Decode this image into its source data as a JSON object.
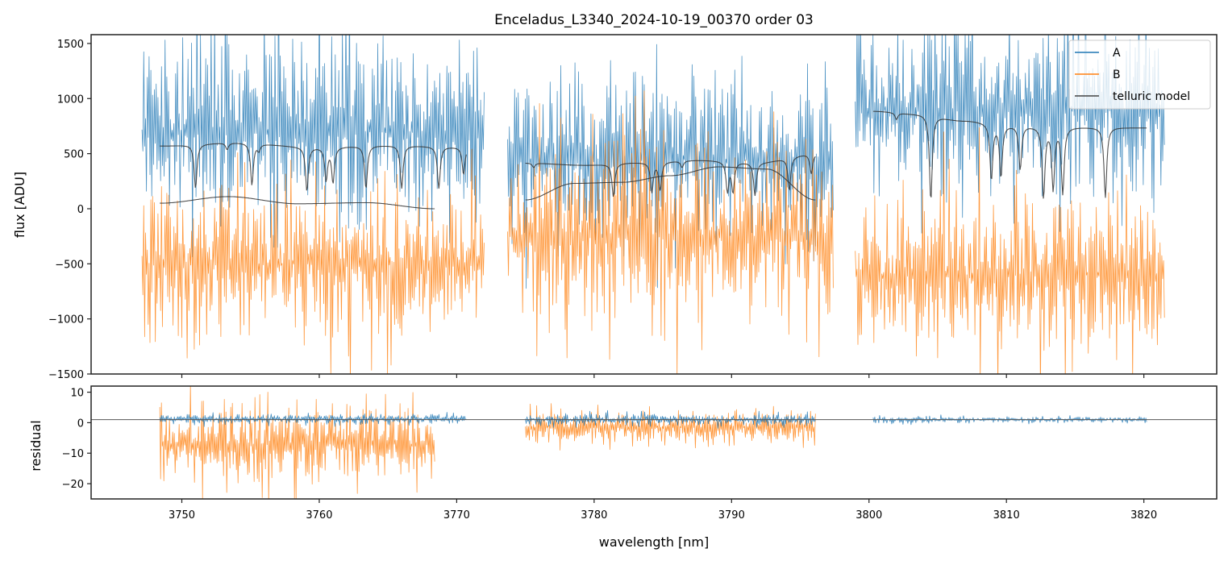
{
  "chart_data": [
    {
      "panel": "flux",
      "type": "line",
      "title": "Enceladus_L3340_2024-10-19_00370  order 03",
      "xlabel": "",
      "ylabel": "flux [ADU]",
      "xlim": [
        3743.4,
        3825.3
      ],
      "ylim": [
        -1500,
        1580
      ],
      "yticks": [
        -1500,
        -1000,
        -500,
        0,
        500,
        1000,
        1500
      ],
      "ytick_labels": [
        "−1500",
        "−1000",
        "−500",
        "0",
        "500",
        "1000",
        "1500"
      ],
      "xticks": [
        3750,
        3760,
        3770,
        3780,
        3790,
        3800,
        3810,
        3820
      ],
      "grid": false,
      "legend": {
        "placement": "top-right",
        "entries": [
          {
            "label": "A",
            "color": "#1f77b4"
          },
          {
            "label": "B",
            "color": "#ff7f0e"
          },
          {
            "label": "telluric model",
            "color": "#444444"
          }
        ]
      },
      "series": [
        {
          "name": "A",
          "color": "#1f77b4",
          "segments": [
            {
              "x_range": [
                3747.1,
                3772.0
              ],
              "mean": 700,
              "spread": 650
            },
            {
              "x_range": [
                3773.7,
                3797.4
              ],
              "mean": 450,
              "spread": 600
            },
            {
              "x_range": [
                3799.0,
                3821.5
              ],
              "mean": 900,
              "spread": 650
            }
          ]
        },
        {
          "name": "B",
          "color": "#ff7f0e",
          "segments": [
            {
              "x_range": [
                3747.1,
                3772.0
              ],
              "mean": -500,
              "spread": 550
            },
            {
              "x_range": [
                3773.7,
                3797.4
              ],
              "mean": -250,
              "spread": 650
            },
            {
              "x_range": [
                3799.0,
                3821.5
              ],
              "mean": -600,
              "spread": 600
            }
          ]
        },
        {
          "name": "telluric model",
          "color": "#333333",
          "segments": [
            {
              "x_range": [
                3748.4,
                3770.7
              ],
              "continuum": [
                570,
                600,
                560,
                575,
                560
              ],
              "lines": [
                3751.0,
                3753.3,
                3755.1,
                3755.6,
                3759.1,
                3760.5,
                3761.0,
                3763.4,
                3766.0,
                3768.7,
                3770.5
              ],
              "depths": [
                400,
                60,
                380,
                60,
                400,
                300,
                320,
                390,
                390,
                380,
                250
              ]
            },
            {
              "x_range": [
                3748.4,
                3768.4
              ],
              "continuum": [
                50,
                110,
                45,
                55,
                0
              ],
              "lines": [],
              "depths": []
            },
            {
              "x_range": [
                3775.0,
                3796.1
              ],
              "continuum": [
                415,
                395,
                420,
                440,
                420,
                500
              ],
              "lines": [
                3775.6,
                3781.4,
                3784.2,
                3784.8,
                3786.4,
                3789.7,
                3790.1,
                3791.7,
                3794.2,
                3795.8
              ],
              "depths": [
                40,
                300,
                270,
                250,
                60,
                270,
                270,
                300,
                300,
                180
              ]
            },
            {
              "x_range": [
                3775.0,
                3796.1
              ],
              "continuum": [
                80,
                230,
                240,
                300,
                380,
                360,
                80
              ],
              "lines": [],
              "depths": []
            },
            {
              "x_range": [
                3800.3,
                3820.2
              ],
              "continuum": [
                885,
                860,
                800,
                760,
                745,
                740,
                735
              ],
              "lines": [
                3802.0,
                3804.5,
                3808.9,
                3809.6,
                3811.0,
                3812.7,
                3813.4,
                3814.1,
                3817.2
              ],
              "depths": [
                60,
                780,
                510,
                470,
                400,
                640,
                560,
                600,
                640
              ]
            }
          ]
        }
      ]
    },
    {
      "panel": "residual",
      "type": "line",
      "xlabel": "wavelength [nm]",
      "ylabel": "residual",
      "xlim": [
        3743.4,
        3825.3
      ],
      "ylim": [
        -25,
        12
      ],
      "yticks": [
        -20,
        -10,
        0,
        10
      ],
      "ytick_labels": [
        "−20",
        "−10",
        "0",
        "10"
      ],
      "xticks": [
        3750,
        3760,
        3770,
        3780,
        3790,
        3800,
        3810,
        3820
      ],
      "xtick_labels": [
        "3750",
        "3760",
        "3770",
        "3780",
        "3790",
        "3800",
        "3810",
        "3820"
      ],
      "reference_line": 1,
      "series": [
        {
          "name": "A",
          "color": "#1f77b4",
          "segments": [
            {
              "x_range": [
                3748.4,
                3770.7
              ],
              "mean": 1.2,
              "spread": 1.2
            },
            {
              "x_range": [
                3775.0,
                3796.1
              ],
              "mean": 1.0,
              "spread": 1.5
            },
            {
              "x_range": [
                3800.3,
                3820.2
              ],
              "mean": 1.0,
              "spread": 0.8
            }
          ]
        },
        {
          "name": "B",
          "color": "#ff7f0e",
          "segments": [
            {
              "x_range": [
                3748.4,
                3768.4
              ],
              "mean": -7,
              "spread": 10
            },
            {
              "x_range": [
                3775.0,
                3796.1
              ],
              "mean": -1.5,
              "spread": 4
            }
          ]
        }
      ]
    }
  ]
}
